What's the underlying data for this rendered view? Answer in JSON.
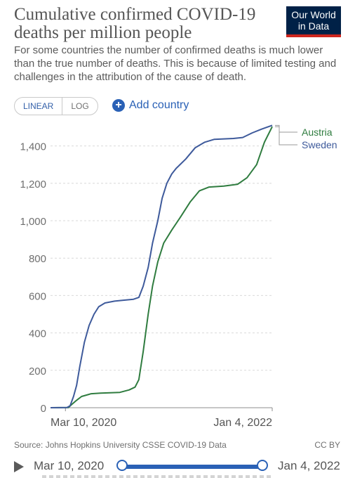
{
  "header": {
    "title": "Cumulative confirmed COVID-19 deaths per million people",
    "subtitle": "For some countries the number of confirmed deaths is much lower than the true number of deaths. This is because of limited testing and challenges in the attribution of the cause of death.",
    "logo_line1": "Our World",
    "logo_line2": "in Data"
  },
  "controls": {
    "linear_label": "LINEAR",
    "log_label": "LOG",
    "add_country_label": "Add country"
  },
  "chart_data": {
    "type": "line",
    "x_range": [
      "2020-01-22",
      "2022-01-04"
    ],
    "ylim": [
      0,
      1500
    ],
    "y_ticks": [
      0,
      200,
      400,
      600,
      800,
      1000,
      1200,
      1400
    ],
    "y_tick_labels": [
      "0",
      "200",
      "400",
      "600",
      "800",
      "1,000",
      "1,200",
      "1,400"
    ],
    "x_tick_labels": [
      "Mar 10, 2020",
      "Jan 4, 2022"
    ],
    "grid": "horizontal dashed",
    "legend": "right, line-end labels",
    "series": [
      {
        "name": "Austria",
        "color": "#2f7c3f",
        "points": [
          [
            "2020-01-22",
            0
          ],
          [
            "2020-03-20",
            1
          ],
          [
            "2020-04-01",
            20
          ],
          [
            "2020-04-15",
            40
          ],
          [
            "2020-05-01",
            60
          ],
          [
            "2020-06-01",
            75
          ],
          [
            "2020-07-01",
            78
          ],
          [
            "2020-08-01",
            80
          ],
          [
            "2020-09-01",
            82
          ],
          [
            "2020-10-01",
            95
          ],
          [
            "2020-10-20",
            110
          ],
          [
            "2020-11-01",
            150
          ],
          [
            "2020-11-15",
            300
          ],
          [
            "2020-12-01",
            500
          ],
          [
            "2020-12-15",
            650
          ],
          [
            "2021-01-01",
            780
          ],
          [
            "2021-01-20",
            880
          ],
          [
            "2021-02-15",
            950
          ],
          [
            "2021-03-15",
            1020
          ],
          [
            "2021-04-15",
            1100
          ],
          [
            "2021-05-15",
            1160
          ],
          [
            "2021-06-15",
            1180
          ],
          [
            "2021-08-01",
            1185
          ],
          [
            "2021-09-15",
            1195
          ],
          [
            "2021-10-15",
            1230
          ],
          [
            "2021-11-15",
            1300
          ],
          [
            "2021-12-10",
            1420
          ],
          [
            "2022-01-04",
            1503
          ]
        ]
      },
      {
        "name": "Sweden",
        "color": "#3e5a9b",
        "points": [
          [
            "2020-01-22",
            0
          ],
          [
            "2020-03-15",
            1
          ],
          [
            "2020-03-25",
            10
          ],
          [
            "2020-04-05",
            60
          ],
          [
            "2020-04-15",
            120
          ],
          [
            "2020-04-25",
            220
          ],
          [
            "2020-05-10",
            350
          ],
          [
            "2020-05-25",
            440
          ],
          [
            "2020-06-10",
            500
          ],
          [
            "2020-06-25",
            540
          ],
          [
            "2020-07-15",
            560
          ],
          [
            "2020-08-15",
            570
          ],
          [
            "2020-09-15",
            575
          ],
          [
            "2020-10-15",
            580
          ],
          [
            "2020-11-01",
            590
          ],
          [
            "2020-11-15",
            650
          ],
          [
            "2020-12-01",
            750
          ],
          [
            "2020-12-15",
            880
          ],
          [
            "2021-01-01",
            1000
          ],
          [
            "2021-01-15",
            1120
          ],
          [
            "2021-01-30",
            1200
          ],
          [
            "2021-02-15",
            1250
          ],
          [
            "2021-03-01",
            1280
          ],
          [
            "2021-04-01",
            1330
          ],
          [
            "2021-05-01",
            1390
          ],
          [
            "2021-06-01",
            1420
          ],
          [
            "2021-07-01",
            1435
          ],
          [
            "2021-09-01",
            1440
          ],
          [
            "2021-10-01",
            1445
          ],
          [
            "2021-11-01",
            1470
          ],
          [
            "2021-12-01",
            1490
          ],
          [
            "2022-01-04",
            1510
          ]
        ]
      }
    ]
  },
  "footer": {
    "source": "Source: Johns Hopkins University CSSE COVID-19 Data",
    "license": "CC BY"
  },
  "timeline": {
    "start_label": "Mar 10, 2020",
    "end_label": "Jan 4, 2022"
  }
}
